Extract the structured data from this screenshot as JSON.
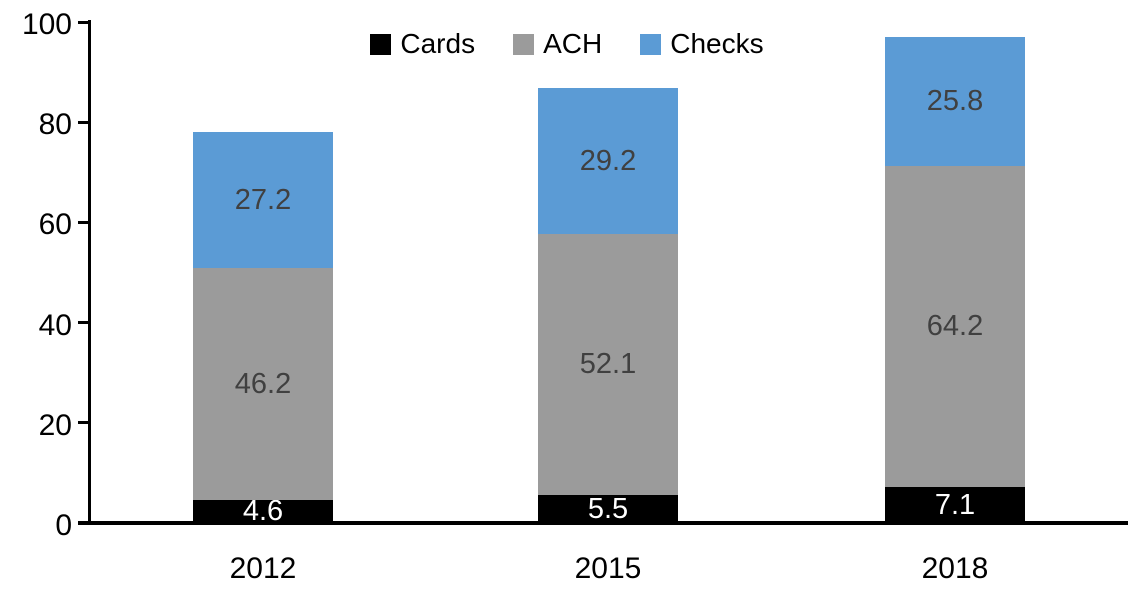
{
  "chart_data": {
    "type": "bar",
    "subtype": "stacked",
    "title": "",
    "xlabel": "",
    "ylabel": "",
    "categories": [
      "2012",
      "2015",
      "2018"
    ],
    "series": [
      {
        "name": "Cards",
        "color": "#000000",
        "label_color": "#ffffff",
        "values": [
          4.6,
          5.5,
          7.1
        ]
      },
      {
        "name": "ACH",
        "color": "#9b9b9b",
        "label_color": "#404040",
        "values": [
          46.2,
          52.1,
          64.2
        ]
      },
      {
        "name": "Checks",
        "color": "#5b9bd5",
        "label_color": "#404040",
        "values": [
          27.2,
          29.2,
          25.8
        ]
      }
    ],
    "stack_totals": [
      78.0,
      86.8,
      97.1
    ],
    "ylim": [
      0,
      100
    ],
    "yticks": [
      0,
      20,
      40,
      60,
      80,
      100
    ],
    "grid": false,
    "legend_position": "top-center",
    "axis_color": "#000000",
    "background_color": "#ffffff",
    "data_labels_shown": true,
    "data_label_format": "0.0"
  }
}
